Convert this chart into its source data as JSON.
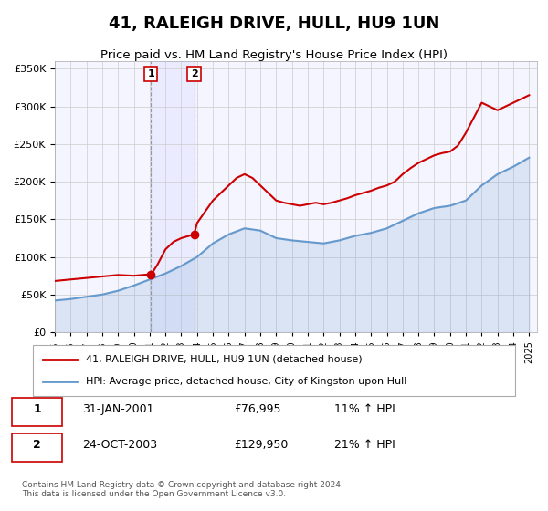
{
  "title": "41, RALEIGH DRIVE, HULL, HU9 1UN",
  "subtitle": "Price paid vs. HM Land Registry's House Price Index (HPI)",
  "legend_label_red": "41, RALEIGH DRIVE, HULL, HU9 1UN (detached house)",
  "legend_label_blue": "HPI: Average price, detached house, City of Kingston upon Hull",
  "footnote": "Contains HM Land Registry data © Crown copyright and database right 2024.\nThis data is licensed under the Open Government Licence v3.0.",
  "table_rows": [
    {
      "num": "1",
      "date": "31-JAN-2001",
      "price": "£76,995",
      "hpi": "11% ↑ HPI"
    },
    {
      "num": "2",
      "date": "24-OCT-2003",
      "price": "£129,950",
      "hpi": "21% ↑ HPI"
    }
  ],
  "sale1_x": 2001.08,
  "sale1_y": 76995,
  "sale2_x": 2003.81,
  "sale2_y": 129950,
  "hpi_line_color": "#6699cc",
  "price_line_color": "#cc0000",
  "background_color": "#ffffff",
  "plot_bg_color": "#f5f5ff",
  "ylim": [
    0,
    360000
  ],
  "xlim_start": 1995.0,
  "xlim_end": 2025.5,
  "yticks": [
    0,
    50000,
    100000,
    150000,
    200000,
    250000,
    300000,
    350000
  ],
  "xtick_years": [
    1995,
    1996,
    1997,
    1998,
    1999,
    2000,
    2001,
    2002,
    2003,
    2004,
    2005,
    2006,
    2007,
    2008,
    2009,
    2010,
    2011,
    2012,
    2013,
    2014,
    2015,
    2016,
    2017,
    2018,
    2019,
    2020,
    2021,
    2022,
    2023,
    2024,
    2025
  ],
  "hpi_x": [
    1995,
    1996,
    1997,
    1998,
    1999,
    2000,
    2001,
    2002,
    2003,
    2004,
    2005,
    2006,
    2007,
    2008,
    2009,
    2010,
    2011,
    2012,
    2013,
    2014,
    2015,
    2016,
    2017,
    2018,
    2019,
    2020,
    2021,
    2022,
    2023,
    2024,
    2025
  ],
  "hpi_y": [
    42000,
    44000,
    47000,
    50000,
    55000,
    62000,
    70000,
    78000,
    88000,
    100000,
    118000,
    130000,
    138000,
    135000,
    125000,
    122000,
    120000,
    118000,
    122000,
    128000,
    132000,
    138000,
    148000,
    158000,
    165000,
    168000,
    175000,
    195000,
    210000,
    220000,
    232000
  ],
  "price_x": [
    1995,
    1996,
    1997,
    1998,
    1999,
    2000,
    2001.08,
    2001.2,
    2001.5,
    2002,
    2002.5,
    2003,
    2003.81,
    2004,
    2004.5,
    2005,
    2005.5,
    2006,
    2006.5,
    2007,
    2007.5,
    2008,
    2008.5,
    2009,
    2009.5,
    2010,
    2010.5,
    2011,
    2011.5,
    2012,
    2012.5,
    2013,
    2013.5,
    2014,
    2014.5,
    2015,
    2015.5,
    2016,
    2016.5,
    2017,
    2017.5,
    2018,
    2018.5,
    2019,
    2019.5,
    2020,
    2020.5,
    2021,
    2021.5,
    2022,
    2022.5,
    2023,
    2023.5,
    2024,
    2024.5,
    2025
  ],
  "price_y": [
    68000,
    70000,
    72000,
    74000,
    76000,
    75000,
    76995,
    80000,
    90000,
    110000,
    120000,
    125000,
    129950,
    145000,
    160000,
    175000,
    185000,
    195000,
    205000,
    210000,
    205000,
    195000,
    185000,
    175000,
    172000,
    170000,
    168000,
    170000,
    172000,
    170000,
    172000,
    175000,
    178000,
    182000,
    185000,
    188000,
    192000,
    195000,
    200000,
    210000,
    218000,
    225000,
    230000,
    235000,
    238000,
    240000,
    248000,
    265000,
    285000,
    305000,
    300000,
    295000,
    300000,
    305000,
    310000,
    315000
  ]
}
